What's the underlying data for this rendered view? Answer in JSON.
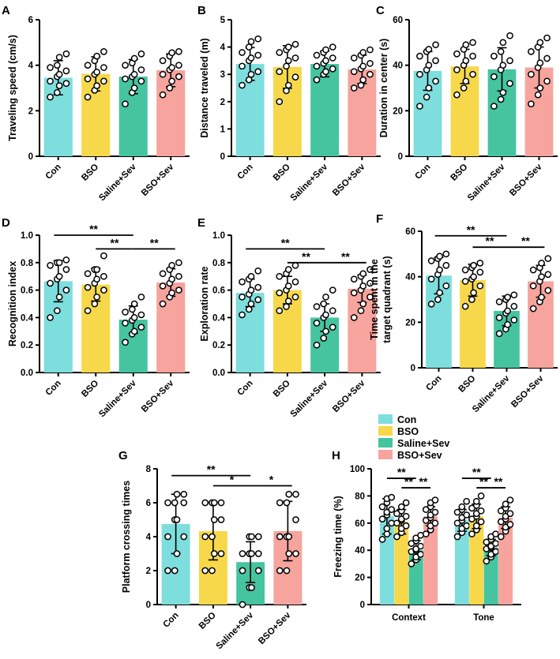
{
  "colors": {
    "Con": "#7ddedd",
    "BSO": "#f6d84a",
    "Saline+Sev": "#45c49f",
    "BSO+Sev": "#f6a49d"
  },
  "chart_data": [
    {
      "id": "A",
      "type": "bar",
      "panel_label": "A",
      "ylabel": "Traveling speed (cm/s)",
      "ylim": [
        0,
        6
      ],
      "yticks": [
        0,
        2,
        4,
        6
      ],
      "categories": [
        "Con",
        "BSO",
        "Saline+Sev",
        "BSO+Sev"
      ],
      "values": [
        3.45,
        3.62,
        3.5,
        3.78
      ],
      "errors": [
        0.75,
        0.75,
        0.75,
        0.72
      ],
      "points": [
        [
          2.6,
          2.8,
          3.1,
          3.2,
          3.3,
          3.5,
          3.6,
          3.75,
          3.9,
          4.0,
          4.35,
          4.5
        ],
        [
          2.6,
          2.9,
          3.1,
          3.3,
          3.4,
          3.6,
          3.7,
          3.9,
          4.0,
          4.2,
          4.4,
          4.6
        ],
        [
          2.3,
          2.8,
          3.0,
          3.3,
          3.4,
          3.5,
          3.6,
          3.8,
          4.0,
          4.1,
          4.3,
          4.5
        ],
        [
          2.7,
          3.0,
          3.3,
          3.5,
          3.6,
          3.8,
          3.9,
          4.0,
          4.2,
          4.4,
          4.55,
          4.6
        ]
      ],
      "significance": []
    },
    {
      "id": "B",
      "type": "bar",
      "panel_label": "B",
      "ylabel": "Distance traveled (m)",
      "ylim": [
        0,
        5
      ],
      "yticks": [
        0,
        1,
        2,
        3,
        4,
        5
      ],
      "categories": [
        "Con",
        "BSO",
        "Saline+Sev",
        "BSO+Sev"
      ],
      "values": [
        3.38,
        3.27,
        3.38,
        3.18
      ],
      "errors": [
        0.6,
        0.78,
        0.47,
        0.52
      ],
      "points": [
        [
          2.6,
          2.8,
          3.0,
          3.1,
          3.3,
          3.5,
          3.6,
          3.7,
          3.8,
          4.0,
          4.2,
          4.3
        ],
        [
          2.0,
          2.4,
          2.6,
          2.9,
          3.1,
          3.3,
          3.5,
          3.6,
          3.8,
          3.9,
          4.0,
          4.1
        ],
        [
          2.8,
          3.0,
          3.1,
          3.2,
          3.3,
          3.4,
          3.5,
          3.6,
          3.7,
          3.8,
          3.9,
          4.0
        ],
        [
          2.5,
          2.6,
          2.8,
          3.0,
          3.1,
          3.2,
          3.3,
          3.4,
          3.6,
          3.7,
          3.8,
          3.9
        ]
      ],
      "significance": []
    },
    {
      "id": "C",
      "type": "bar",
      "panel_label": "C",
      "ylabel": "Duration in center (s)",
      "ylim": [
        0,
        60
      ],
      "yticks": [
        0,
        20,
        40,
        60
      ],
      "categories": [
        "Con",
        "BSO",
        "Saline+Sev",
        "BSO+Sev"
      ],
      "values": [
        37.5,
        39.5,
        38.2,
        39.0
      ],
      "errors": [
        8.5,
        7.5,
        9.5,
        9.0
      ],
      "points": [
        [
          22,
          26,
          30,
          33,
          36,
          38,
          40,
          42,
          44,
          46,
          47,
          49
        ],
        [
          27,
          30,
          33,
          36,
          38,
          40,
          42,
          44,
          45,
          47,
          49,
          50
        ],
        [
          22,
          25,
          28,
          32,
          35,
          38,
          40,
          42,
          44,
          46,
          50,
          53
        ],
        [
          23,
          27,
          30,
          33,
          36,
          39,
          41,
          43,
          46,
          48,
          50,
          52
        ]
      ],
      "significance": []
    },
    {
      "id": "D",
      "type": "bar",
      "panel_label": "D",
      "ylabel": "Recognition index",
      "ylim": [
        0,
        1.0
      ],
      "yticks": [
        0.0,
        0.2,
        0.4,
        0.6,
        0.8,
        1.0
      ],
      "tick_decimals": 1,
      "categories": [
        "Con",
        "BSO",
        "Saline+Sev",
        "BSO+Sev"
      ],
      "values": [
        0.665,
        0.64,
        0.385,
        0.655
      ],
      "errors": [
        0.15,
        0.12,
        0.1,
        0.1
      ],
      "points": [
        [
          0.4,
          0.45,
          0.55,
          0.6,
          0.65,
          0.68,
          0.7,
          0.75,
          0.78,
          0.8,
          0.8,
          0.82
        ],
        [
          0.45,
          0.5,
          0.55,
          0.6,
          0.62,
          0.65,
          0.68,
          0.7,
          0.72,
          0.75,
          0.75,
          0.85
        ],
        [
          0.22,
          0.28,
          0.3,
          0.33,
          0.36,
          0.38,
          0.4,
          0.42,
          0.44,
          0.46,
          0.5,
          0.55
        ],
        [
          0.5,
          0.55,
          0.58,
          0.6,
          0.63,
          0.65,
          0.68,
          0.7,
          0.72,
          0.75,
          0.78,
          0.8
        ]
      ],
      "significance": [
        {
          "from": 0,
          "to": 2,
          "label": "**",
          "level": 1.0
        },
        {
          "from": 1,
          "to": 2,
          "label": "**",
          "level": 0.9
        },
        {
          "from": 2,
          "to": 3,
          "label": "**",
          "level": 0.9
        }
      ]
    },
    {
      "id": "E",
      "type": "bar",
      "panel_label": "E",
      "ylabel": "Exploration rate",
      "ylim": [
        0,
        1.0
      ],
      "yticks": [
        0.0,
        0.2,
        0.4,
        0.6,
        0.8,
        1.0
      ],
      "tick_decimals": 1,
      "categories": [
        "Con",
        "BSO",
        "Saline+Sev",
        "BSO+Sev"
      ],
      "values": [
        0.58,
        0.6,
        0.4,
        0.61
      ],
      "errors": [
        0.1,
        0.1,
        0.1,
        0.1
      ],
      "points": [
        [
          0.42,
          0.46,
          0.5,
          0.53,
          0.55,
          0.57,
          0.6,
          0.62,
          0.66,
          0.68,
          0.7,
          0.74
        ],
        [
          0.45,
          0.48,
          0.52,
          0.55,
          0.58,
          0.6,
          0.63,
          0.66,
          0.7,
          0.72,
          0.75,
          0.78
        ],
        [
          0.2,
          0.25,
          0.3,
          0.33,
          0.36,
          0.4,
          0.42,
          0.45,
          0.48,
          0.5,
          0.55,
          0.6
        ],
        [
          0.4,
          0.45,
          0.5,
          0.55,
          0.58,
          0.6,
          0.63,
          0.65,
          0.68,
          0.7,
          0.72,
          0.75
        ]
      ],
      "significance": [
        {
          "from": 0,
          "to": 2,
          "label": "**",
          "level": 0.9
        },
        {
          "from": 1,
          "to": 2,
          "label": "**",
          "level": 0.8
        },
        {
          "from": 2,
          "to": 3,
          "label": "**",
          "level": 0.8
        }
      ]
    },
    {
      "id": "F",
      "type": "bar",
      "panel_label": "F",
      "ylabel": [
        "Time spent in the",
        "target quadrant (s)"
      ],
      "ylim": [
        0,
        60
      ],
      "yticks": [
        0,
        20,
        40,
        60
      ],
      "categories": [
        "Con",
        "BSO",
        "Saline+Sev",
        "BSO+Sev"
      ],
      "values": [
        40.5,
        38.5,
        25.0,
        38.0
      ],
      "errors": [
        8.0,
        7.0,
        6.5,
        7.0
      ],
      "points": [
        [
          28,
          30,
          33,
          36,
          39,
          41,
          43,
          45,
          47,
          48,
          49,
          50
        ],
        [
          27,
          30,
          33,
          36,
          38,
          39,
          40,
          42,
          43,
          44,
          45,
          46
        ],
        [
          15,
          17,
          19,
          21,
          22,
          24,
          25,
          27,
          29,
          30,
          31,
          32
        ],
        [
          26,
          29,
          31,
          34,
          36,
          38,
          40,
          41,
          43,
          44,
          46,
          48
        ]
      ],
      "significance": [
        {
          "from": 0,
          "to": 2,
          "label": "**",
          "level": 58
        },
        {
          "from": 1,
          "to": 2,
          "label": "**",
          "level": 53
        },
        {
          "from": 2,
          "to": 3,
          "label": "**",
          "level": 53
        }
      ]
    },
    {
      "id": "G",
      "type": "bar",
      "panel_label": "G",
      "ylabel": "Platform crossing times",
      "ylim": [
        0,
        8
      ],
      "yticks": [
        0,
        2,
        4,
        6,
        8
      ],
      "categories": [
        "Con",
        "BSO",
        "Saline+Sev",
        "BSO+Sev"
      ],
      "values": [
        4.75,
        4.33,
        2.5,
        4.33
      ],
      "errors": [
        1.75,
        1.7,
        1.2,
        1.75
      ],
      "points": [
        [
          2,
          2,
          3,
          4,
          4,
          5,
          5,
          6,
          6,
          6,
          6.5,
          6.5
        ],
        [
          2,
          2,
          3,
          3,
          4,
          4,
          5,
          5,
          6,
          6,
          6,
          6
        ],
        [
          0,
          1,
          1,
          2,
          2,
          3,
          3,
          3,
          3,
          4,
          4,
          4
        ],
        [
          2,
          2,
          3,
          3,
          4,
          4,
          4,
          5,
          6,
          6,
          6.5,
          6.5
        ]
      ],
      "significance": [
        {
          "from": 0,
          "to": 2,
          "label": "**",
          "level": 7.6
        },
        {
          "from": 1,
          "to": 2,
          "label": "*",
          "level": 7.0
        },
        {
          "from": 2,
          "to": 3,
          "label": "*",
          "level": 7.0
        }
      ]
    },
    {
      "id": "H",
      "type": "bar",
      "panel_label": "H",
      "ylabel": "Freezing time (%)",
      "ylim": [
        0,
        100
      ],
      "yticks": [
        0,
        20,
        40,
        60,
        80,
        100
      ],
      "groups": [
        "Context",
        "Tone"
      ],
      "legend": [
        "Con",
        "BSO",
        "Saline+Sev",
        "BSO+Sev"
      ],
      "legend_position": "top",
      "series": [
        {
          "name": "Con",
          "values": [
            65,
            62
          ],
          "errors": [
            13,
            8
          ]
        },
        {
          "name": "BSO",
          "values": [
            61,
            65
          ],
          "errors": [
            9,
            9
          ]
        },
        {
          "name": "Saline+Sev",
          "values": [
            40,
            42
          ],
          "errors": [
            7,
            6
          ]
        },
        {
          "name": "BSO+Sev",
          "values": [
            65,
            64
          ],
          "errors": [
            7,
            8
          ]
        }
      ],
      "points": [
        [
          [
            48,
            52,
            56,
            60,
            63,
            66,
            68,
            70,
            72,
            75,
            78,
            79
          ],
          [
            50,
            53,
            56,
            58,
            60,
            62,
            64,
            66,
            68,
            70,
            72,
            76
          ]
        ],
        [
          [
            50,
            53,
            56,
            58,
            60,
            62,
            63,
            65,
            67,
            69,
            72,
            75
          ],
          [
            52,
            55,
            58,
            61,
            63,
            65,
            67,
            69,
            71,
            73,
            76,
            80
          ]
        ],
        [
          [
            30,
            33,
            35,
            37,
            39,
            40,
            41,
            43,
            45,
            47,
            49,
            51
          ],
          [
            32,
            35,
            37,
            39,
            41,
            42,
            43,
            45,
            46,
            48,
            50,
            52
          ]
        ],
        [
          [
            52,
            55,
            58,
            60,
            62,
            64,
            66,
            68,
            70,
            72,
            75,
            77
          ],
          [
            50,
            54,
            57,
            59,
            61,
            63,
            65,
            67,
            69,
            71,
            74,
            77
          ]
        ]
      ],
      "significance": [
        {
          "group": 0,
          "from": 0,
          "to": 2,
          "label": "**",
          "level": 93
        },
        {
          "group": 0,
          "from": 1,
          "to": 2,
          "label": "**",
          "level": 86
        },
        {
          "group": 0,
          "from": 2,
          "to": 3,
          "label": "**",
          "level": 86
        },
        {
          "group": 1,
          "from": 0,
          "to": 2,
          "label": "**",
          "level": 93
        },
        {
          "group": 1,
          "from": 1,
          "to": 2,
          "label": "**",
          "level": 86
        },
        {
          "group": 1,
          "from": 2,
          "to": 3,
          "label": "**",
          "level": 86
        }
      ]
    }
  ]
}
